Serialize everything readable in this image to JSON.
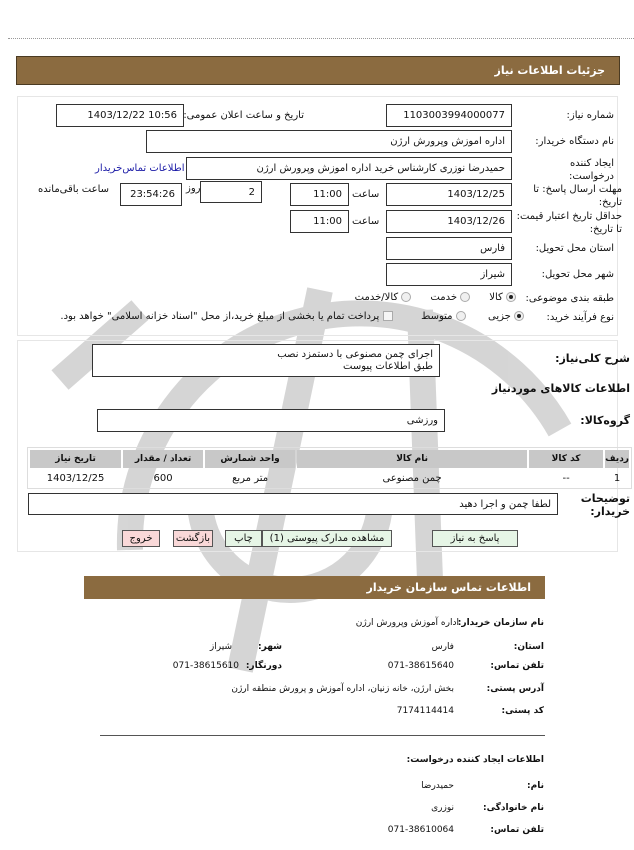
{
  "header": {
    "title": "جزئیات اطلاعات نیاز"
  },
  "form": {
    "need_number_label": "شماره نیاز:",
    "need_number": "1103003994000077",
    "announce_label": "تاریخ و ساعت اعلان عمومی:",
    "announce_value": "1403/12/22 10:56",
    "buyer_org_label": "نام دستگاه خریدار:",
    "buyer_org": "اداره اموزش وپرورش  ارژن",
    "creator_label": "ایجاد کننده درخواست:",
    "creator": "حمیدرضا  نوزری  کارشناس خرید اداره اموزش وپرورش  ارژن",
    "contact_link": "اطلاعات تماس‌خریدار",
    "deadline_label": "مهلت ارسال پاسخ: تا تاریخ:",
    "deadline_date": "1403/12/25",
    "time_label": "ساعت",
    "deadline_time": "11:00",
    "days_label": "روز",
    "days": "2",
    "remaining": "23:54:26",
    "remaining_label": "ساعت باقی‌مانده",
    "validity_label": "حداقل تاریخ اعتبار قیمت: تا تاریخ:",
    "validity_date": "1403/12/26",
    "validity_time": "11:00",
    "province_label": "استان محل تحویل:",
    "province": "فارس",
    "city_label": "شهر محل تحویل:",
    "city": "شیراز",
    "category_label": "طبقه بندی موضوعی:",
    "category_options": [
      "کالا",
      "خدمت",
      "کالا/خدمت"
    ],
    "category_selected": "کالا",
    "process_label": "نوع فرآیند خرید:",
    "process_options": [
      "جزیی",
      "متوسط"
    ],
    "process_selected": "جزیی",
    "payment_note": "پرداخت تمام یا بخشی از مبلغ خرید،از محل \"اسناد خزانه اسلامی\" خواهد بود."
  },
  "details": {
    "summary_label": "شرح کلی‌نیاز:",
    "summary_line1": "اجرای چمن  مصنوعی با  دستمزد نصب",
    "summary_line2": "طبق اطلاعات  پیوست",
    "goods_title": "اطلاعات کالاهای موردنیاز",
    "group_label": "گروه‌کالا:",
    "group": "ورزشی",
    "table": {
      "headers": [
        "ردیف",
        "کد کالا",
        "نام کالا",
        "واحد شمارش",
        "تعداد / مقدار",
        "تاریخ نیاز"
      ],
      "rows": [
        [
          "1",
          "--",
          "چمن مصنوعی",
          "متر مربع",
          "600",
          "1403/12/25"
        ]
      ]
    },
    "notes_label": "توضیحات خریدار:",
    "notes": "لطفا چمن و اجرا دهید"
  },
  "buttons": {
    "reply": "پاسخ به نیاز",
    "docs": "مشاهده مدارک پیوستی (1)",
    "print": "چاپ",
    "back": "بازگشت",
    "exit": "خروج"
  },
  "contact": {
    "title": "اطلاعات تماس سازمان خریدار",
    "org_label": "نام سازمان خریدار:",
    "org": "اداره آموزش وپرورش ارژن",
    "province_label": "استان:",
    "province": "فارس",
    "city_label": "شهر:",
    "city": "شیراز",
    "phone_label": "تلفن تماس:",
    "phone": "071-38615640",
    "fax_label": "دورنگار:",
    "fax": "071-38615610",
    "address_label": "آدرس پستی:",
    "address": "بخش ارژن، خانه زنیان، اداره آموزش و پرورش منطقه ارژن",
    "postal_label": "کد پستی:",
    "postal": "7174114414",
    "creator_title": "اطلاعات ایجاد کننده درخواست:",
    "name_label": "نام:",
    "name": "حمیدرضا",
    "family_label": "نام خانوادگی:",
    "family": "نوزری",
    "cphone_label": "تلفن تماس:",
    "cphone": "071-38610064"
  }
}
